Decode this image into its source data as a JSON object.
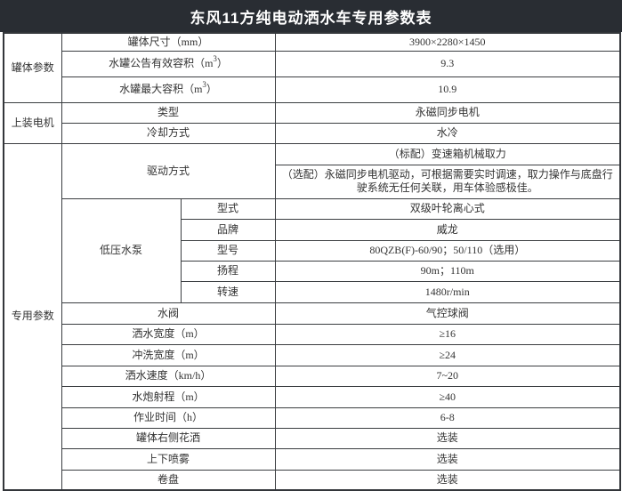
{
  "title": "东风11方纯电动洒水车专用参数表",
  "colors": {
    "header_bg": "#292d33",
    "header_text": "#ffffff",
    "border": "#3a3d40",
    "text": "#333333"
  },
  "table": {
    "groups": {
      "tank": {
        "label": "罐体参数"
      },
      "motor": {
        "label": "上装电机"
      },
      "special": {
        "label": "专用参数"
      }
    },
    "rows": {
      "tank_size": {
        "label": "罐体尺寸（mm）",
        "value": "3900×2280×1450"
      },
      "tank_rated_volume": {
        "label_prefix": "水罐公告有效容积（m",
        "sup": "3",
        "label_suffix": "）",
        "value": "9.3"
      },
      "tank_max_volume": {
        "label_prefix": "水罐最大容积（m",
        "sup": "3",
        "label_suffix": "）",
        "value": "10.9"
      },
      "motor_type": {
        "label": "类型",
        "value": "永磁同步电机"
      },
      "cooling": {
        "label": "冷却方式",
        "value": "水冷"
      },
      "drive": {
        "label": "驱动方式",
        "value_standard": "（标配）变速箱机械取力",
        "value_optional": "（选配）永磁同步电机驱动，可根据需要实时调速，取力操作与底盘行驶系统无任何关联，用车体验感极佳。"
      },
      "pump": {
        "label": "低压水泵",
        "type": {
          "label": "型式",
          "value": "双级叶轮离心式"
        },
        "brand": {
          "label": "品牌",
          "value": "威龙"
        },
        "model": {
          "label": "型号",
          "value": "80QZB(F)-60/90；50/110（选用）"
        },
        "head": {
          "label": "扬程",
          "value": "90m；110m"
        },
        "speed": {
          "label": "转速",
          "value": "1480r/min"
        }
      },
      "water_valve": {
        "label": "水阀",
        "value": "气控球阀"
      },
      "spray_width": {
        "label": "洒水宽度（m）",
        "value": "≥16"
      },
      "flush_width": {
        "label": "冲洗宽度（m）",
        "value": "≥24"
      },
      "spray_speed": {
        "label": "洒水速度（km/h）",
        "value": "7~20"
      },
      "cannon_range": {
        "label": "水炮射程（m）",
        "value": "≥40"
      },
      "work_time": {
        "label": "作业时间（h）",
        "value": "6-8"
      },
      "right_side_sprinkler": {
        "label": "罐体右侧花洒",
        "value": "选装"
      },
      "up_down_mist": {
        "label": "上下喷雾",
        "value": "选装"
      },
      "hose_reel": {
        "label": "卷盘",
        "value": "选装"
      }
    }
  }
}
